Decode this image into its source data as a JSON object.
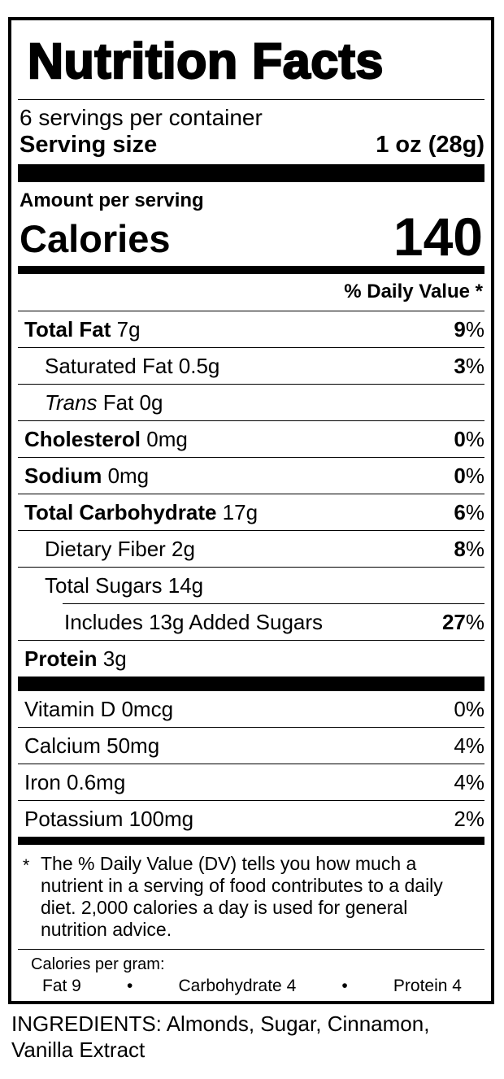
{
  "colors": {
    "background": "#ffffff",
    "text": "#000000",
    "bars": "#000000"
  },
  "label": {
    "title": "Nutrition Facts",
    "servings_per_container": "6 servings per container",
    "serving_size_label": "Serving size",
    "serving_size_value": "1 oz (28g)",
    "amount_per_serving": "Amount per serving",
    "calories_label": "Calories",
    "calories_value": "140",
    "daily_value_header": "% Daily Value *",
    "nutrients": [
      {
        "name": "Total Fat",
        "amount": "7g",
        "dv": "9",
        "bold": true,
        "indent": 0
      },
      {
        "name": "Saturated Fat",
        "amount": "0.5g",
        "dv": "3",
        "bold": false,
        "indent": 1
      },
      {
        "name": "Trans Fat",
        "amount": "0g",
        "dv": "",
        "bold": false,
        "indent": 1,
        "italic_first_word": true
      },
      {
        "name": "Cholesterol",
        "amount": "0mg",
        "dv": "0",
        "bold": true,
        "indent": 0
      },
      {
        "name": "Sodium",
        "amount": "0mg",
        "dv": "0",
        "bold": true,
        "indent": 0
      },
      {
        "name": "Total Carbohydrate",
        "amount": "17g",
        "dv": "6",
        "bold": true,
        "indent": 0
      },
      {
        "name": "Dietary Fiber",
        "amount": "2g",
        "dv": "8",
        "bold": false,
        "indent": 1
      },
      {
        "name": "Total Sugars",
        "amount": "14g",
        "dv": "",
        "bold": false,
        "indent": 1
      },
      {
        "name": "Includes 13g Added Sugars",
        "amount": "",
        "dv": "27",
        "bold": false,
        "indent": 2,
        "partial_rule": true
      },
      {
        "name": "Protein",
        "amount": "3g",
        "dv": "",
        "bold": true,
        "indent": 0
      }
    ],
    "vitamins": [
      {
        "name": "Vitamin D 0mcg",
        "dv": "0"
      },
      {
        "name": "Calcium 50mg",
        "dv": "4"
      },
      {
        "name": "Iron 0.6mg",
        "dv": "4"
      },
      {
        "name": "Potassium 100mg",
        "dv": "2"
      }
    ],
    "percent_sign": "%",
    "footnote_marker": "*",
    "footnote_text": "The % Daily Value (DV) tells you how much a nutrient in a serving of food contributes to a daily diet. 2,000 calories a day is used for general nutrition advice.",
    "calories_per_gram": {
      "label": "Calories per gram:",
      "items": [
        "Fat 9",
        "Carbohydrate 4",
        "Protein 4"
      ],
      "bullet": "•"
    }
  },
  "ingredients_text": "INGREDIENTS: Almonds, Sugar, Cinnamon, Vanilla Extract"
}
